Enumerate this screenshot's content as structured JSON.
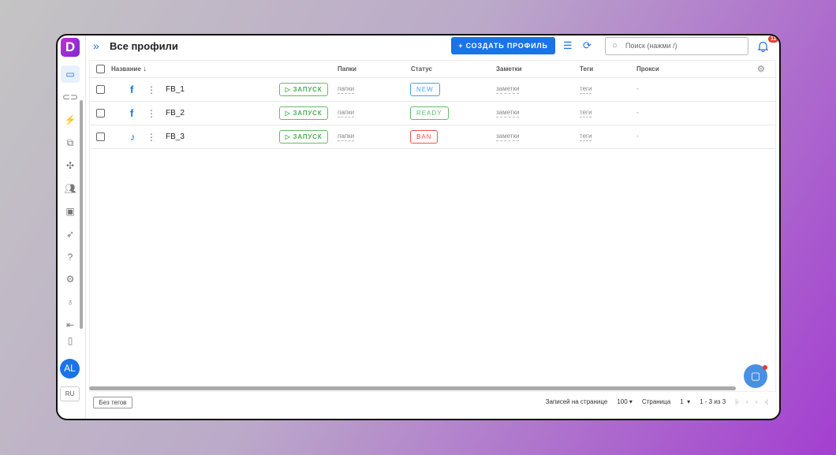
{
  "app": {
    "logo": "D",
    "title": "Все профили"
  },
  "sidebar": {
    "icons": [
      "browser-icon",
      "link-icon",
      "automation-icon",
      "copy-icon",
      "extension-icon",
      "users-icon",
      "api-icon",
      "rocket-icon",
      "help-icon",
      "settings-icon",
      "lightbulb-icon",
      "logout-icon",
      "wallet-icon"
    ],
    "avatar": "AL",
    "language": "RU"
  },
  "header": {
    "create_label": "+ СОЗДАТЬ ПРОФИЛЬ",
    "search_placeholder": "Поиск (нажми /)",
    "notifications": "11"
  },
  "table": {
    "columns": {
      "name": "Название",
      "folders": "Папки",
      "status": "Статус",
      "notes": "Заметки",
      "tags": "Теги",
      "proxy": "Прокси"
    },
    "rows": [
      {
        "name": "FB_1",
        "os": "apple",
        "platform": "facebook",
        "launch": "ЗАПУСК",
        "folders": "папки",
        "status": "NEW",
        "status_color": "#42a5f5",
        "notes": "заметки",
        "tags": "теги",
        "proxy": "-"
      },
      {
        "name": "FB_2",
        "os": "apple",
        "platform": "facebook",
        "launch": "ЗАПУСК",
        "folders": "папки",
        "status": "READY",
        "status_color": "#66bb6a",
        "notes": "заметки",
        "tags": "теги",
        "proxy": "-"
      },
      {
        "name": "FB_3",
        "os": "apple",
        "platform": "tiktok",
        "launch": "ЗАПУСК",
        "folders": "папки",
        "status": "BAN",
        "status_color": "#ef5350",
        "notes": "заметки",
        "tags": "теги",
        "proxy": "-"
      }
    ]
  },
  "footer": {
    "no_tags": "Без тегов",
    "per_page_label": "Записей на странице",
    "per_page": "100",
    "page_label": "Страница",
    "page": "1",
    "range": "1 - 3 из 3"
  }
}
